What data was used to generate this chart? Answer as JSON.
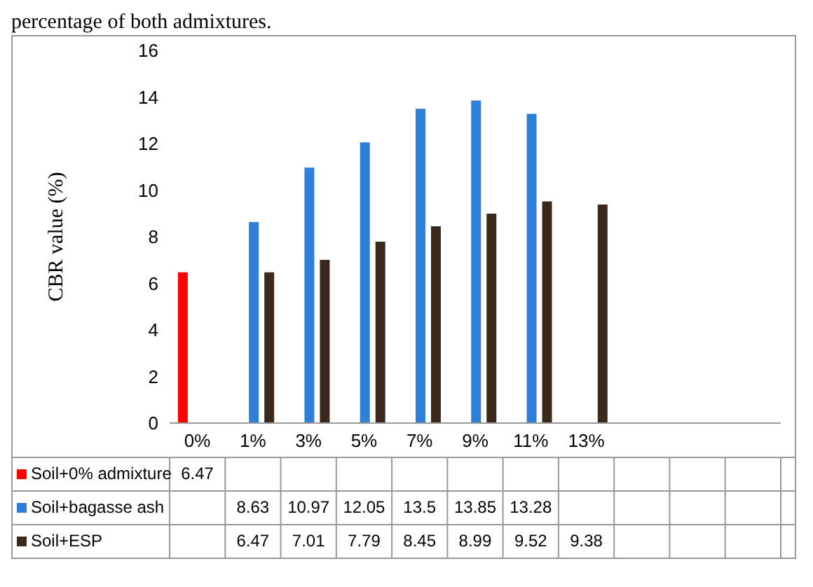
{
  "chart_data": {
    "type": "bar",
    "annotations": [
      "percentage of both admixtures."
    ],
    "ylabel": "CBR value (%)",
    "categories": [
      "0%",
      "1%",
      "3%",
      "5%",
      "7%",
      "9%",
      "11%",
      "13%",
      null,
      null,
      null
    ],
    "series": [
      {
        "name": "Soil+0% admixture",
        "color": "#ff0000",
        "values": [
          6.47,
          null,
          null,
          null,
          null,
          null,
          null,
          null,
          null,
          null,
          null
        ]
      },
      {
        "name": "Soil+bagasse ash",
        "color": "#2f7fd8",
        "values": [
          null,
          8.63,
          10.97,
          12.05,
          13.5,
          13.85,
          13.28,
          null,
          null,
          null,
          null
        ]
      },
      {
        "name": "Soil+ESP",
        "color": "#3b2a1c",
        "values": [
          null,
          6.47,
          7.01,
          7.79,
          8.45,
          8.99,
          9.52,
          9.38,
          null,
          null,
          null
        ]
      }
    ],
    "ylim": [
      0,
      16
    ],
    "yticks": [
      0,
      2,
      4,
      6,
      8,
      10,
      12,
      14,
      16
    ],
    "grid": false,
    "legend": "bottom",
    "data_labels": true
  }
}
